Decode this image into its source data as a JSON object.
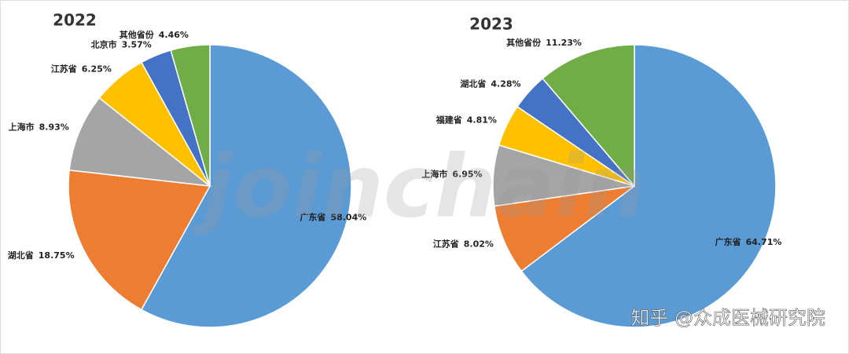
{
  "chart_data": [
    {
      "type": "pie",
      "title": "2022",
      "categories": [
        "广东省",
        "湖北省",
        "上海市",
        "江苏省",
        "北京市",
        "其他省份"
      ],
      "values": [
        58.04,
        18.75,
        8.93,
        6.25,
        3.57,
        4.46
      ],
      "value_labels": [
        "58.04%",
        "18.75%",
        "8.93%",
        "6.25%",
        "3.57%",
        "4.46%"
      ],
      "colors": [
        "#5b9bd5",
        "#ed7d31",
        "#a5a5a5",
        "#ffc000",
        "#4472c4",
        "#70ad47"
      ]
    },
    {
      "type": "pie",
      "title": "2023",
      "categories": [
        "广东省",
        "江苏省",
        "上海市",
        "福建省",
        "湖北省",
        "其他省份"
      ],
      "values": [
        64.71,
        8.02,
        6.95,
        4.81,
        4.28,
        11.23
      ],
      "value_labels": [
        "64.71%",
        "8.02%",
        "6.95%",
        "4.81%",
        "4.28%",
        "11.23%"
      ],
      "colors": [
        "#5b9bd5",
        "#ed7d31",
        "#a5a5a5",
        "#ffc000",
        "#4472c4",
        "#70ad47"
      ]
    }
  ],
  "watermark": "joinchain",
  "attribution": "知乎 @众成医械研究院"
}
